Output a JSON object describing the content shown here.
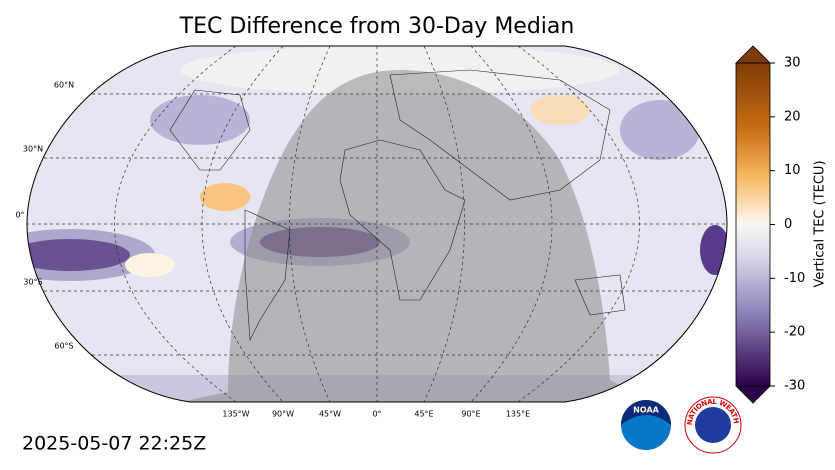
{
  "title": "TEC Difference from 30-Day Median",
  "map": {
    "lat_labels": [
      "60°N",
      "30°N",
      "0°",
      "30°S",
      "60°S"
    ],
    "lon_labels": [
      "135°W",
      "90°W",
      "45°W",
      "0°",
      "45°E",
      "90°E",
      "135°E"
    ]
  },
  "colorbar": {
    "label": "Vertical TEC (TECU)",
    "lim": [
      -30,
      30
    ],
    "ticks": [
      30,
      20,
      10,
      0,
      -10,
      -20,
      -30
    ]
  },
  "timestamp": "2025-05-07 22:25Z",
  "logos": {
    "noaa": "NOAA",
    "nws": "NATIONAL WEATHER SERVICE"
  }
}
